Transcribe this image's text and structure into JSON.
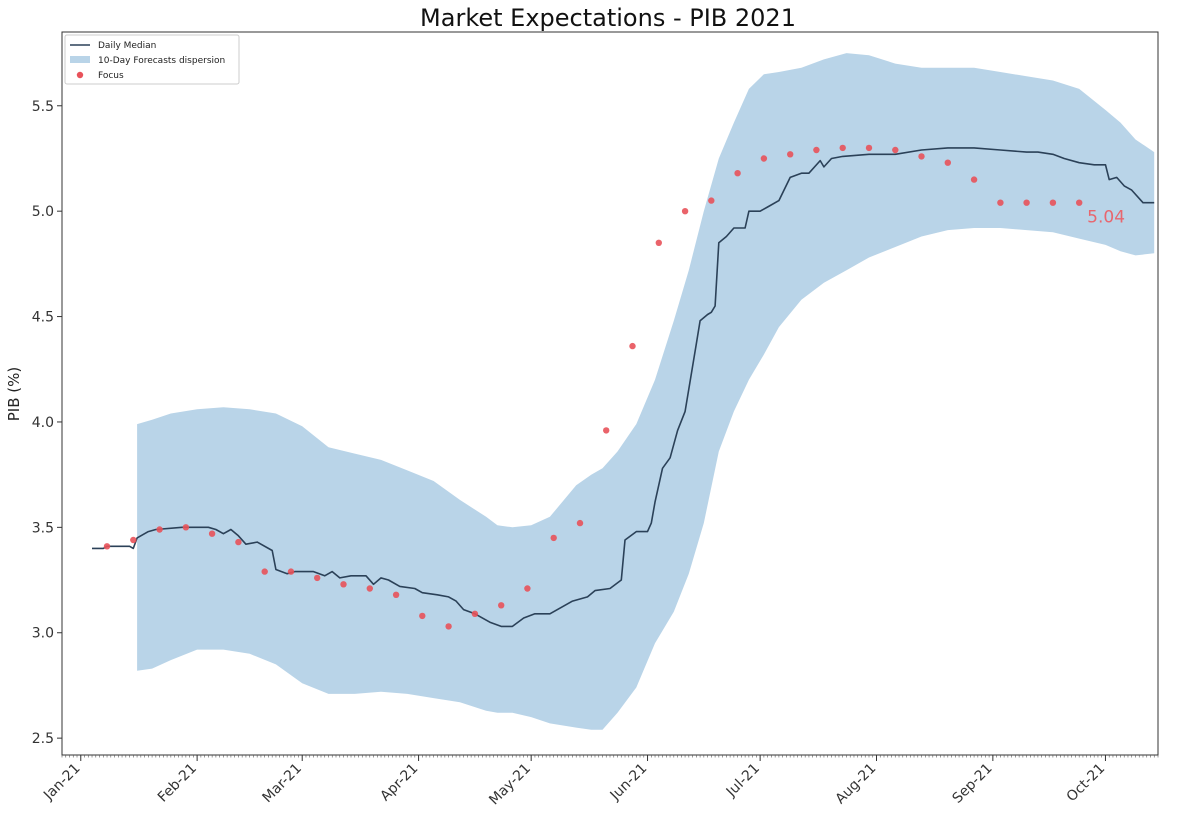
{
  "chart_data": {
    "type": "line",
    "title": "Market Expectations - PIB 2021",
    "xlabel": "",
    "ylabel": "PIB (%)",
    "ylim": [
      2.42,
      5.85
    ],
    "xlim": [
      "2020-12-27",
      "2021-10-15"
    ],
    "yticks": [
      2.5,
      3.0,
      3.5,
      4.0,
      4.5,
      5.0,
      5.5
    ],
    "ytick_labels": [
      "2.5",
      "3.0",
      "3.5",
      "4.0",
      "4.5",
      "5.0",
      "5.5"
    ],
    "xticks": [
      {
        "date": "2021-01-01",
        "label": "Jan-21"
      },
      {
        "date": "2021-02-01",
        "label": "Feb-21"
      },
      {
        "date": "2021-03-01",
        "label": "Mar-21"
      },
      {
        "date": "2021-04-01",
        "label": "Apr-21"
      },
      {
        "date": "2021-05-01",
        "label": "May-21"
      },
      {
        "date": "2021-06-01",
        "label": "Jun-21"
      },
      {
        "date": "2021-07-01",
        "label": "Jul-21"
      },
      {
        "date": "2021-08-01",
        "label": "Aug-21"
      },
      {
        "date": "2021-09-01",
        "label": "Sep-21"
      },
      {
        "date": "2021-10-01",
        "label": "Oct-21"
      }
    ],
    "grid": false,
    "legend_position": "top-left",
    "series": [
      {
        "name": "Daily Median",
        "kind": "line",
        "color": "#2b4158",
        "points": [
          [
            "2021-01-04",
            3.4
          ],
          [
            "2021-01-07",
            3.4
          ],
          [
            "2021-01-08",
            3.41
          ],
          [
            "2021-01-14",
            3.41
          ],
          [
            "2021-01-15",
            3.4
          ],
          [
            "2021-01-16",
            3.45
          ],
          [
            "2021-01-19",
            3.48
          ],
          [
            "2021-01-21",
            3.49
          ],
          [
            "2021-01-28",
            3.5
          ],
          [
            "2021-02-04",
            3.5
          ],
          [
            "2021-02-06",
            3.49
          ],
          [
            "2021-02-08",
            3.47
          ],
          [
            "2021-02-10",
            3.49
          ],
          [
            "2021-02-12",
            3.46
          ],
          [
            "2021-02-14",
            3.42
          ],
          [
            "2021-02-17",
            3.43
          ],
          [
            "2021-02-21",
            3.39
          ],
          [
            "2021-02-22",
            3.3
          ],
          [
            "2021-02-25",
            3.28
          ],
          [
            "2021-02-27",
            3.29
          ],
          [
            "2021-03-04",
            3.29
          ],
          [
            "2021-03-07",
            3.27
          ],
          [
            "2021-03-09",
            3.29
          ],
          [
            "2021-03-11",
            3.26
          ],
          [
            "2021-03-14",
            3.27
          ],
          [
            "2021-03-18",
            3.27
          ],
          [
            "2021-03-20",
            3.23
          ],
          [
            "2021-03-22",
            3.26
          ],
          [
            "2021-03-24",
            3.25
          ],
          [
            "2021-03-27",
            3.22
          ],
          [
            "2021-03-31",
            3.21
          ],
          [
            "2021-04-02",
            3.19
          ],
          [
            "2021-04-06",
            3.18
          ],
          [
            "2021-04-09",
            3.17
          ],
          [
            "2021-04-11",
            3.15
          ],
          [
            "2021-04-13",
            3.11
          ],
          [
            "2021-04-16",
            3.09
          ],
          [
            "2021-04-20",
            3.05
          ],
          [
            "2021-04-23",
            3.03
          ],
          [
            "2021-04-26",
            3.03
          ],
          [
            "2021-04-29",
            3.07
          ],
          [
            "2021-05-02",
            3.09
          ],
          [
            "2021-05-06",
            3.09
          ],
          [
            "2021-05-09",
            3.12
          ],
          [
            "2021-05-12",
            3.15
          ],
          [
            "2021-05-16",
            3.17
          ],
          [
            "2021-05-18",
            3.2
          ],
          [
            "2021-05-22",
            3.21
          ],
          [
            "2021-05-25",
            3.25
          ],
          [
            "2021-05-26",
            3.44
          ],
          [
            "2021-05-29",
            3.48
          ],
          [
            "2021-06-01",
            3.48
          ],
          [
            "2021-06-02",
            3.52
          ],
          [
            "2021-06-03",
            3.62
          ],
          [
            "2021-06-05",
            3.78
          ],
          [
            "2021-06-07",
            3.83
          ],
          [
            "2021-06-09",
            3.96
          ],
          [
            "2021-06-11",
            4.05
          ],
          [
            "2021-06-14",
            4.37
          ],
          [
            "2021-06-15",
            4.48
          ],
          [
            "2021-06-17",
            4.51
          ],
          [
            "2021-06-18",
            4.52
          ],
          [
            "2021-06-19",
            4.55
          ],
          [
            "2021-06-20",
            4.85
          ],
          [
            "2021-06-22",
            4.88
          ],
          [
            "2021-06-24",
            4.92
          ],
          [
            "2021-06-27",
            4.92
          ],
          [
            "2021-06-28",
            5.0
          ],
          [
            "2021-07-01",
            5.0
          ],
          [
            "2021-07-03",
            5.02
          ],
          [
            "2021-07-06",
            5.05
          ],
          [
            "2021-07-09",
            5.16
          ],
          [
            "2021-07-12",
            5.18
          ],
          [
            "2021-07-14",
            5.18
          ],
          [
            "2021-07-17",
            5.24
          ],
          [
            "2021-07-18",
            5.21
          ],
          [
            "2021-07-20",
            5.25
          ],
          [
            "2021-07-23",
            5.26
          ],
          [
            "2021-07-30",
            5.27
          ],
          [
            "2021-08-06",
            5.27
          ],
          [
            "2021-08-13",
            5.29
          ],
          [
            "2021-08-20",
            5.3
          ],
          [
            "2021-08-27",
            5.3
          ],
          [
            "2021-09-03",
            5.29
          ],
          [
            "2021-09-10",
            5.28
          ],
          [
            "2021-09-13",
            5.28
          ],
          [
            "2021-09-17",
            5.27
          ],
          [
            "2021-09-20",
            5.25
          ],
          [
            "2021-09-24",
            5.23
          ],
          [
            "2021-09-28",
            5.22
          ],
          [
            "2021-09-30",
            5.22
          ],
          [
            "2021-10-01",
            5.22
          ],
          [
            "2021-10-02",
            5.15
          ],
          [
            "2021-10-04",
            5.16
          ],
          [
            "2021-10-06",
            5.12
          ],
          [
            "2021-10-08",
            5.1
          ],
          [
            "2021-10-11",
            5.04
          ],
          [
            "2021-10-13",
            5.04
          ],
          [
            "2021-10-14",
            5.04
          ]
        ]
      },
      {
        "name": "10-Day Forecasts dispersion",
        "kind": "band",
        "color": "#b9d4e8",
        "points": [
          [
            "2021-01-16",
            2.82,
            3.99
          ],
          [
            "2021-01-20",
            2.83,
            4.01
          ],
          [
            "2021-01-25",
            2.87,
            4.04
          ],
          [
            "2021-02-01",
            2.92,
            4.06
          ],
          [
            "2021-02-08",
            2.92,
            4.07
          ],
          [
            "2021-02-15",
            2.9,
            4.06
          ],
          [
            "2021-02-22",
            2.85,
            4.04
          ],
          [
            "2021-03-01",
            2.76,
            3.98
          ],
          [
            "2021-03-08",
            2.71,
            3.88
          ],
          [
            "2021-03-15",
            2.71,
            3.85
          ],
          [
            "2021-03-22",
            2.72,
            3.82
          ],
          [
            "2021-03-29",
            2.71,
            3.77
          ],
          [
            "2021-04-05",
            2.69,
            3.72
          ],
          [
            "2021-04-12",
            2.67,
            3.63
          ],
          [
            "2021-04-19",
            2.63,
            3.55
          ],
          [
            "2021-04-22",
            2.62,
            3.51
          ],
          [
            "2021-04-26",
            2.62,
            3.5
          ],
          [
            "2021-05-01",
            2.6,
            3.51
          ],
          [
            "2021-05-06",
            2.57,
            3.55
          ],
          [
            "2021-05-13",
            2.55,
            3.7
          ],
          [
            "2021-05-17",
            2.54,
            3.75
          ],
          [
            "2021-05-20",
            2.54,
            3.78
          ],
          [
            "2021-05-24",
            2.62,
            3.86
          ],
          [
            "2021-05-29",
            2.74,
            3.99
          ],
          [
            "2021-06-03",
            2.95,
            4.2
          ],
          [
            "2021-06-08",
            3.1,
            4.48
          ],
          [
            "2021-06-12",
            3.28,
            4.72
          ],
          [
            "2021-06-16",
            3.52,
            5.0
          ],
          [
            "2021-06-20",
            3.86,
            5.25
          ],
          [
            "2021-06-24",
            4.05,
            5.42
          ],
          [
            "2021-06-28",
            4.2,
            5.58
          ],
          [
            "2021-07-02",
            4.32,
            5.65
          ],
          [
            "2021-07-06",
            4.45,
            5.66
          ],
          [
            "2021-07-12",
            4.58,
            5.68
          ],
          [
            "2021-07-18",
            4.66,
            5.72
          ],
          [
            "2021-07-24",
            4.72,
            5.75
          ],
          [
            "2021-07-30",
            4.78,
            5.74
          ],
          [
            "2021-08-06",
            4.83,
            5.7
          ],
          [
            "2021-08-13",
            4.88,
            5.68
          ],
          [
            "2021-08-20",
            4.91,
            5.68
          ],
          [
            "2021-08-27",
            4.92,
            5.68
          ],
          [
            "2021-09-03",
            4.92,
            5.66
          ],
          [
            "2021-09-10",
            4.91,
            5.64
          ],
          [
            "2021-09-17",
            4.9,
            5.62
          ],
          [
            "2021-09-24",
            4.87,
            5.58
          ],
          [
            "2021-10-01",
            4.84,
            5.48
          ],
          [
            "2021-10-05",
            4.81,
            5.42
          ],
          [
            "2021-10-09",
            4.79,
            5.34
          ],
          [
            "2021-10-14",
            4.8,
            5.28
          ]
        ]
      },
      {
        "name": "Focus",
        "kind": "scatter",
        "color": "#e8525a",
        "points": [
          [
            "2021-01-08",
            3.41
          ],
          [
            "2021-01-15",
            3.44
          ],
          [
            "2021-01-22",
            3.49
          ],
          [
            "2021-01-29",
            3.5
          ],
          [
            "2021-02-05",
            3.47
          ],
          [
            "2021-02-12",
            3.43
          ],
          [
            "2021-02-19",
            3.29
          ],
          [
            "2021-02-26",
            3.29
          ],
          [
            "2021-03-05",
            3.26
          ],
          [
            "2021-03-12",
            3.23
          ],
          [
            "2021-03-19",
            3.21
          ],
          [
            "2021-03-26",
            3.18
          ],
          [
            "2021-04-02",
            3.08
          ],
          [
            "2021-04-09",
            3.03
          ],
          [
            "2021-04-16",
            3.09
          ],
          [
            "2021-04-23",
            3.13
          ],
          [
            "2021-04-30",
            3.21
          ],
          [
            "2021-05-07",
            3.45
          ],
          [
            "2021-05-14",
            3.52
          ],
          [
            "2021-05-21",
            3.96
          ],
          [
            "2021-05-28",
            4.36
          ],
          [
            "2021-06-04",
            4.85
          ],
          [
            "2021-06-11",
            5.0
          ],
          [
            "2021-06-18",
            5.05
          ],
          [
            "2021-06-25",
            5.18
          ],
          [
            "2021-07-02",
            5.25
          ],
          [
            "2021-07-09",
            5.27
          ],
          [
            "2021-07-16",
            5.29
          ],
          [
            "2021-07-23",
            5.3
          ],
          [
            "2021-07-30",
            5.3
          ],
          [
            "2021-08-06",
            5.29
          ],
          [
            "2021-08-13",
            5.26
          ],
          [
            "2021-08-20",
            5.23
          ],
          [
            "2021-08-27",
            5.15
          ],
          [
            "2021-09-03",
            5.04
          ],
          [
            "2021-09-10",
            5.04
          ],
          [
            "2021-09-17",
            5.04
          ],
          [
            "2021-09-24",
            5.04
          ]
        ]
      }
    ],
    "annotation": {
      "text": "5.04",
      "date": "2021-09-24",
      "value": 5.04,
      "color": "#e8666e"
    }
  }
}
